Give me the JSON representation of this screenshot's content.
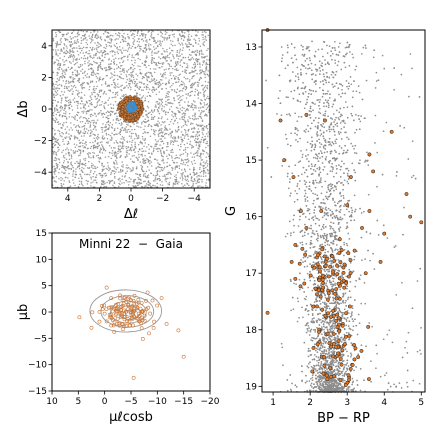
{
  "chart_data": [
    {
      "type": "scatter",
      "panel": "spatial",
      "xlabel": "Δℓ",
      "ylabel": "Δb",
      "xlim": [
        5,
        -5
      ],
      "ylim": [
        -5,
        5
      ],
      "xticks": [
        4,
        2,
        0,
        -2,
        -4
      ],
      "yticks": [
        4,
        2,
        0,
        -2,
        -4
      ],
      "xtick_labels": [
        "4",
        "2",
        "0",
        "−2",
        "−4"
      ],
      "ytick_labels": [
        "4",
        "2",
        "0",
        "−2",
        "−4"
      ],
      "field_color": "#8c8c8c",
      "member_color": "#c8773a",
      "center_color": "#3b8fd0",
      "series": [
        {
          "name": "",
          "kind": "field",
          "distribution": "uniform",
          "n": 3500,
          "x_range": [
            5,
            -5
          ],
          "y_range": [
            -5,
            5
          ]
        },
        {
          "name": "",
          "kind": "members",
          "distribution": "disk",
          "n": 260,
          "center": [
            0,
            0
          ],
          "radius": 0.8
        },
        {
          "name": "",
          "kind": "core",
          "distribution": "disk",
          "n": 40,
          "center": [
            -0.05,
            0.1
          ],
          "radius": 0.3
        }
      ]
    },
    {
      "type": "scatter",
      "panel": "proper-motion",
      "title": "Minni 22  −  Gaia",
      "xlabel": "μℓcosb",
      "ylabel": "μb",
      "xlim": [
        10,
        -20
      ],
      "ylim": [
        -15,
        15
      ],
      "xticks": [
        10,
        5,
        0,
        -5,
        -10,
        -15,
        -20
      ],
      "yticks": [
        15,
        10,
        5,
        0,
        -5,
        -10,
        -15
      ],
      "xtick_labels": [
        "10",
        "5",
        "0",
        "−5",
        "−10",
        "−15",
        "−20"
      ],
      "ytick_labels": [
        "15",
        "10",
        "5",
        "0",
        "−5",
        "−10",
        "−15"
      ],
      "point_color": "#c8773a",
      "contour_color": "#9a9a9a",
      "center": [
        -4.5,
        0.0
      ],
      "spread": [
        2.6,
        1.7
      ],
      "n": 140,
      "contour_levels": [
        {
          "rx": 6.8,
          "ry": 4.0,
          "cx": -4.0,
          "cy": 0.2
        },
        {
          "rx": 5.0,
          "ry": 3.0,
          "cx": -4.3,
          "cy": 0.1
        },
        {
          "rx": 3.4,
          "ry": 2.1,
          "cx": -4.5,
          "cy": 0.0
        },
        {
          "rx": 2.0,
          "ry": 1.3,
          "cx": -4.7,
          "cy": -0.1
        },
        {
          "rx": 0.9,
          "ry": 0.6,
          "cx": -4.8,
          "cy": -0.2
        }
      ],
      "outliers": [
        [
          -5.5,
          -12.5
        ],
        [
          -15.0,
          -8.5
        ],
        [
          4.8,
          -1.0
        ],
        [
          -14.0,
          -3.5
        ],
        [
          2.5,
          -3.0
        ]
      ]
    },
    {
      "type": "scatter",
      "panel": "cmd",
      "xlabel": "BP − RP",
      "ylabel": "G",
      "xlim": [
        0.7,
        5.1
      ],
      "ylim": [
        19.1,
        12.7
      ],
      "xticks": [
        1,
        2,
        3,
        4,
        5
      ],
      "yticks": [
        13,
        14,
        15,
        16,
        17,
        18,
        19
      ],
      "xtick_labels": [
        "1",
        "2",
        "3",
        "4",
        "5"
      ],
      "ytick_labels": [
        "13",
        "14",
        "15",
        "16",
        "17",
        "18",
        "19"
      ],
      "field_color": "#8c8c8c",
      "member_color": "#e07a2a",
      "field_n": 6000,
      "members": [
        [
          0.85,
          12.7
        ],
        [
          1.2,
          14.3
        ],
        [
          1.3,
          15.0
        ],
        [
          1.9,
          14.2
        ],
        [
          2.4,
          14.3
        ],
        [
          3.1,
          15.3
        ],
        [
          3.6,
          14.9
        ],
        [
          3.7,
          15.2
        ],
        [
          4.2,
          14.5
        ],
        [
          4.6,
          15.6
        ],
        [
          4.7,
          16.0
        ],
        [
          5.0,
          16.1
        ],
        [
          0.85,
          17.7
        ],
        [
          1.55,
          15.3
        ],
        [
          1.75,
          15.9
        ],
        [
          1.6,
          16.5
        ],
        [
          1.9,
          16.2
        ],
        [
          2.3,
          15.9
        ],
        [
          2.8,
          16.4
        ],
        [
          3.0,
          15.8
        ],
        [
          3.4,
          16.2
        ],
        [
          3.6,
          15.9
        ],
        [
          4.0,
          16.3
        ],
        [
          3.9,
          16.8
        ],
        [
          1.5,
          16.8
        ],
        [
          1.6,
          17.1
        ],
        [
          2.6,
          16.7
        ],
        [
          2.9,
          16.9
        ],
        [
          3.2,
          16.6
        ],
        [
          3.5,
          17.0
        ]
      ],
      "member_core": {
        "x_center": 2.6,
        "x_spread": 0.55,
        "g_min": 16.5,
        "g_max": 19.0,
        "n": 150
      }
    }
  ]
}
